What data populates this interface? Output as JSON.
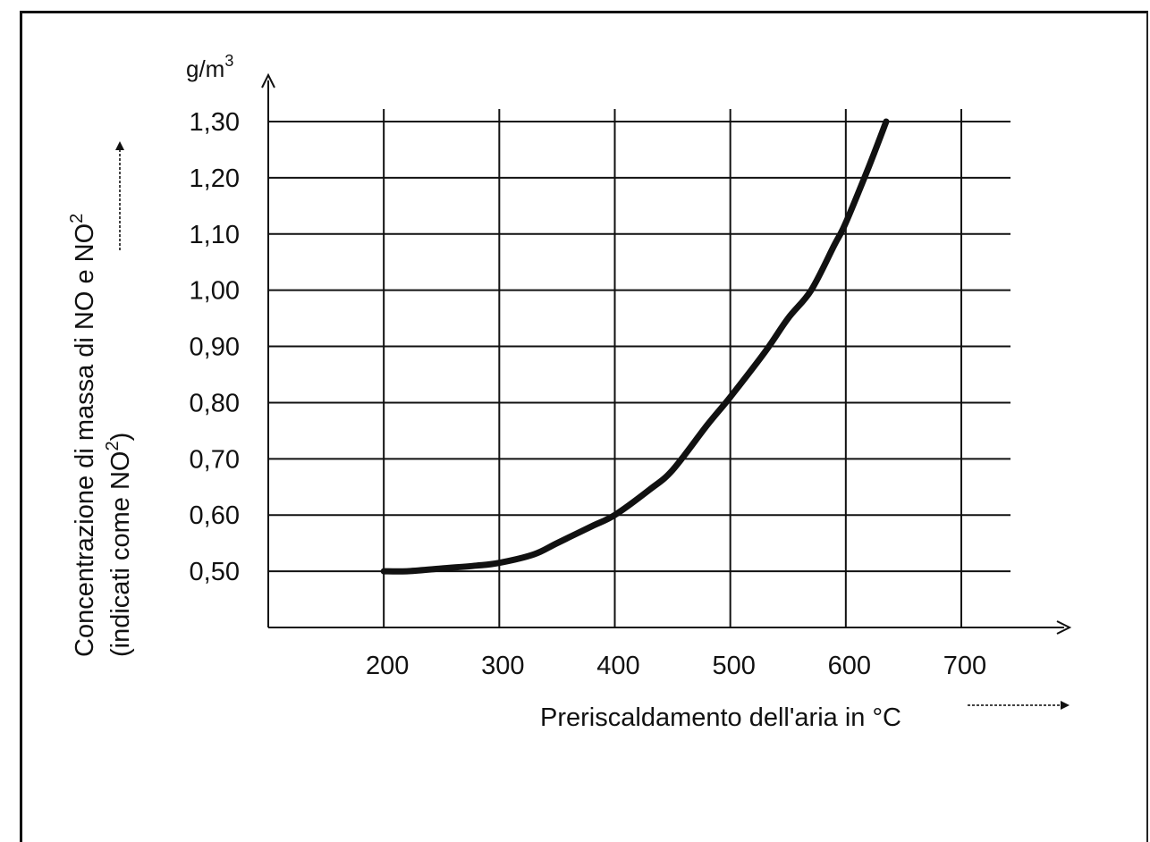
{
  "chart_data": {
    "type": "line",
    "xlabel": "Preriscaldamento dell'aria in °C",
    "ylabel_line1": "Concentrazione di massa di NO e NO",
    "ylabel_line1_sup": "2",
    "ylabel_line2": "(indicati come NO",
    "ylabel_line2_sup": "2",
    "ylabel_line2_end": ")",
    "y_unit": "g/m",
    "y_unit_sup": "3",
    "x_ticks": [
      "200",
      "300",
      "400",
      "500",
      "600",
      "700"
    ],
    "y_ticks": [
      "0,50",
      "0,60",
      "0,70",
      "0,80",
      "0,90",
      "1,00",
      "1,10",
      "1,20",
      "1,30"
    ],
    "xlim": [
      100,
      700
    ],
    "ylim": [
      0.4,
      1.3
    ],
    "grid": true,
    "series": [
      {
        "x": [
          200,
          220,
          250,
          280,
          300,
          330,
          350,
          380,
          400,
          430,
          450,
          480,
          500,
          530,
          550,
          570,
          590,
          600,
          620,
          635
        ],
        "y": [
          0.5,
          0.5,
          0.505,
          0.51,
          0.515,
          0.53,
          0.55,
          0.58,
          0.6,
          0.645,
          0.68,
          0.76,
          0.81,
          0.89,
          0.95,
          1.0,
          1.08,
          1.12,
          1.22,
          1.3
        ]
      }
    ]
  }
}
